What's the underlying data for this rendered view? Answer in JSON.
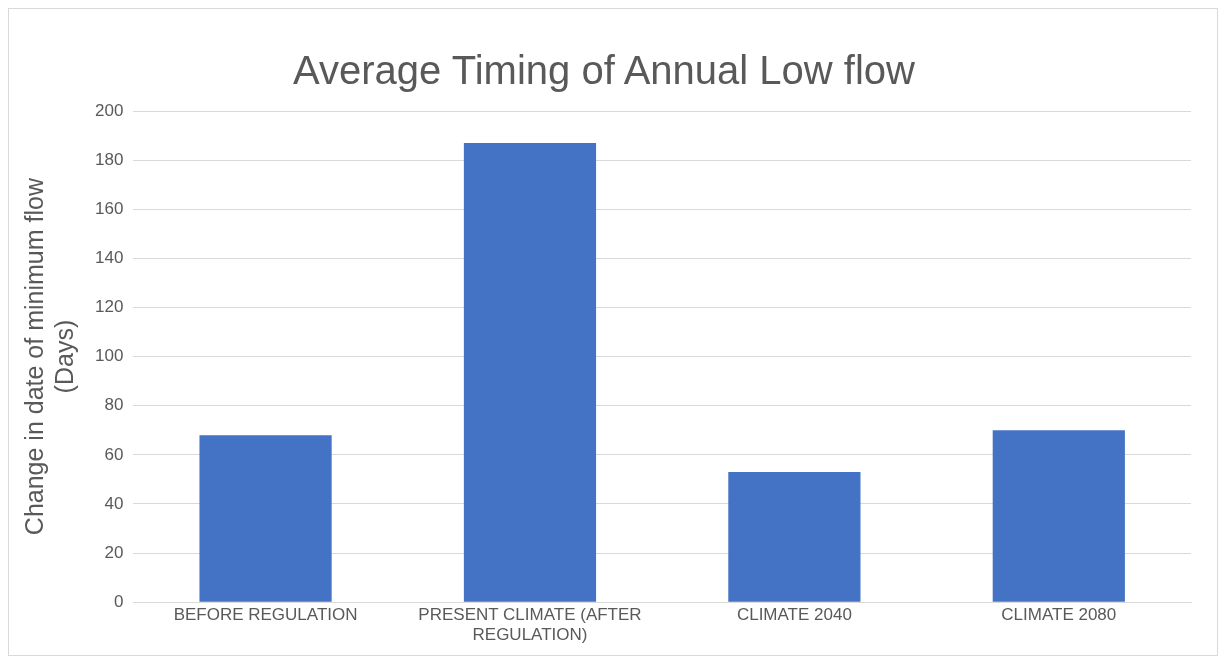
{
  "chart_data": {
    "type": "bar",
    "title": "Average Timing of Annual Low flow",
    "ylabel": "Change in date of minimum flow (Days)",
    "categories": [
      "BEFORE REGULATION",
      "PRESENT CLIMATE (AFTER REGULATION)",
      "CLIMATE 2040",
      "CLIMATE 2080"
    ],
    "values": [
      68,
      187,
      53,
      70
    ],
    "color": "#4472c4",
    "ylim": [
      0,
      200
    ],
    "yticks": [
      0,
      20,
      40,
      60,
      80,
      100,
      120,
      140,
      160,
      180,
      200
    ],
    "grid": "y"
  }
}
